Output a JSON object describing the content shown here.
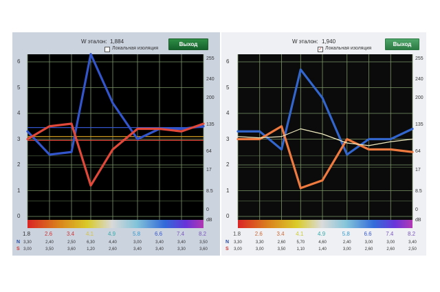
{
  "left": {
    "title_label": "W эталон:",
    "title_value": "1,884",
    "local_label": "Локальная изоляция",
    "local_checked": false,
    "exit_label": "Выход",
    "y_ticks": [
      "6",
      "5",
      "4",
      "3",
      "2",
      "1",
      "0"
    ],
    "right_ticks": [
      "255",
      "240",
      "200",
      "135",
      "64",
      "17",
      "8.5",
      "0",
      "dB"
    ],
    "x_ticks": [
      "1.8",
      "2.6",
      "3.4",
      "4.1",
      "4.9",
      "5.8",
      "6.6",
      "7.4",
      "8.2"
    ],
    "x_colors": [
      "#333333",
      "#cc3333",
      "#cc3333",
      "#d6c43a",
      "#33aaaa",
      "#3399cc",
      "#3355cc",
      "#7a55bb",
      "#7a55bb"
    ],
    "row_n_label": "N",
    "row_s_label": "S",
    "row_n": [
      "3,30",
      "2,40",
      "2,50",
      "6,30",
      "4,40",
      "3,00",
      "3,40",
      "3,40",
      "3,50"
    ],
    "row_s": [
      "3,00",
      "3,50",
      "3,60",
      "1,20",
      "2,60",
      "3,40",
      "3,40",
      "3,30",
      "3,60"
    ]
  },
  "right": {
    "title_label": "W эталон:",
    "title_value": "1,940",
    "local_label": "Локальная изоляция",
    "local_checked": true,
    "local_check_mark": "✓",
    "exit_label": "Выход",
    "y_ticks": [
      "6",
      "5",
      "4",
      "3",
      "2",
      "1",
      "0"
    ],
    "right_ticks": [
      "255",
      "240",
      "200",
      "135",
      "64",
      "17",
      "8.5",
      "0",
      "dB"
    ],
    "x_ticks": [
      "1.8",
      "2.6",
      "3.4",
      "4.1",
      "4.9",
      "5.8",
      "6.6",
      "7.4",
      "8.2"
    ],
    "x_colors": [
      "#555555",
      "#cc6633",
      "#cc6633",
      "#cccc33",
      "#33aaaa",
      "#3399cc",
      "#3355cc",
      "#7a55bb",
      "#7a55bb"
    ],
    "row_n_label": "N",
    "row_s_label": "S",
    "row_n": [
      "3,30",
      "3,30",
      "2,60",
      "5,70",
      "4,60",
      "2,40",
      "3,00",
      "3,00",
      "3,40"
    ],
    "row_s": [
      "3,00",
      "3,00",
      "3,50",
      "1,10",
      "1,40",
      "3,00",
      "2,60",
      "2,60",
      "2,50"
    ]
  },
  "chart_data": [
    {
      "type": "line",
      "x": [
        1.8,
        2.6,
        3.4,
        4.1,
        4.9,
        5.8,
        6.6,
        7.4,
        8.2
      ],
      "series": [
        {
          "values": [
            3.3,
            2.4,
            2.5,
            6.3,
            4.4,
            3.0,
            3.4,
            3.4,
            3.5
          ],
          "color": "#3355cc"
        },
        {
          "values": [
            3.0,
            3.5,
            3.6,
            1.2,
            2.6,
            3.4,
            3.4,
            3.3,
            3.6
          ],
          "color": "#e0483a"
        }
      ],
      "ylim": [
        0,
        6.3
      ],
      "reference_lines": [
        {
          "y": 3.45,
          "color": "#3355cc"
        },
        {
          "y": 3.1,
          "color": "#d4a020"
        },
        {
          "y": 2.95,
          "color": "#e0483a"
        }
      ],
      "grid": true,
      "background": "#000000"
    },
    {
      "type": "line",
      "x": [
        1.8,
        2.6,
        3.4,
        4.1,
        4.9,
        5.8,
        6.6,
        7.4,
        8.2
      ],
      "series": [
        {
          "values": [
            3.3,
            3.3,
            2.6,
            5.7,
            4.6,
            2.4,
            3.0,
            3.0,
            3.4
          ],
          "color": "#3366cc"
        },
        {
          "values": [
            3.0,
            3.0,
            3.5,
            1.1,
            1.4,
            3.0,
            2.6,
            2.6,
            2.5
          ],
          "color": "#ee7a40"
        },
        {
          "values": [
            3.1,
            3.05,
            3.1,
            3.4,
            3.2,
            2.85,
            2.75,
            2.9,
            3.0
          ],
          "color": "#f0ecc0"
        }
      ],
      "ylim": [
        0,
        6.3
      ],
      "grid": true,
      "background": "#0b0b0b"
    }
  ]
}
